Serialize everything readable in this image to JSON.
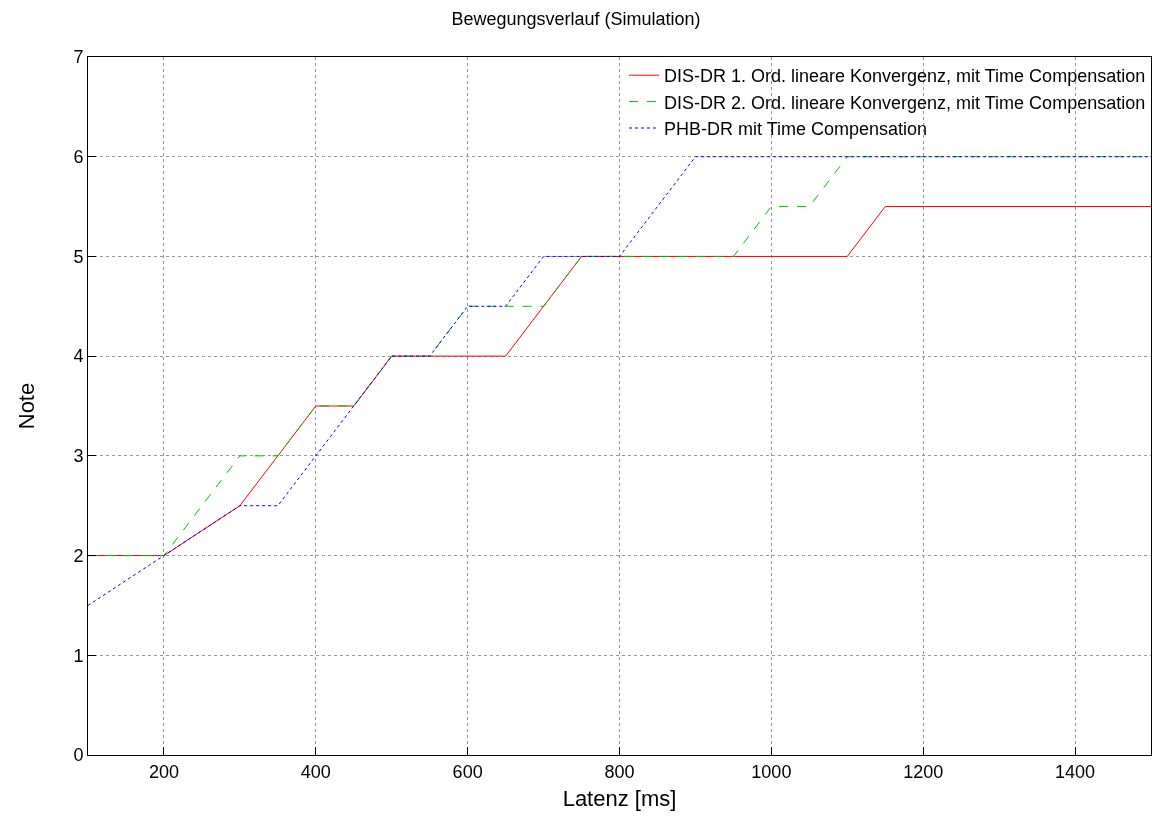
{
  "chart_data": {
    "type": "line",
    "title": "Bewegungsverlauf (Simulation)",
    "xlabel": "Latenz [ms]",
    "ylabel": "Note",
    "xlim": [
      100,
      1500
    ],
    "xticks": [
      200,
      400,
      600,
      800,
      1000,
      1200,
      1400
    ],
    "ylim": [
      0,
      7
    ],
    "yticks": [
      0,
      1,
      2,
      3,
      4,
      5,
      6,
      7
    ],
    "grid": true,
    "legend": "top right",
    "marker": "none",
    "series": [
      {
        "name": "DIS-DR 1. Ord. lineare Konvergenz, mit Time Compensation",
        "color": "#ff0000",
        "line_style": "solid",
        "x": [
          100,
          200,
          300,
          400,
          450,
          500,
          650,
          750,
          1100,
          1150,
          1500
        ],
        "values": [
          2,
          2,
          2.5,
          3.5,
          3.5,
          4,
          4,
          5,
          5,
          5.5,
          5.5
        ]
      },
      {
        "name": "DIS-DR 2. Ord. lineare Konvergenz, mit Time Compensation",
        "color": "#00c000",
        "line_style": "dashed",
        "x": [
          100,
          200,
          300,
          350,
          400,
          450,
          500,
          550,
          600,
          650,
          700,
          750,
          950,
          1000,
          1050,
          1100,
          1500
        ],
        "values": [
          2,
          2,
          3,
          3,
          3.5,
          3.5,
          4,
          4,
          4.5,
          4.5,
          4.5,
          5,
          5,
          5.5,
          5.5,
          6,
          6
        ]
      },
      {
        "name": "PHB-DR mit Time Compensation",
        "color": "#0000ff",
        "line_style": "dotted",
        "x": [
          100,
          200,
          300,
          350,
          400,
          450,
          500,
          550,
          600,
          650,
          700,
          800,
          900,
          1500
        ],
        "values": [
          1.5,
          2,
          2.5,
          2.5,
          3,
          3.5,
          4,
          4,
          4.5,
          4.5,
          5,
          5,
          6,
          6
        ]
      }
    ]
  }
}
